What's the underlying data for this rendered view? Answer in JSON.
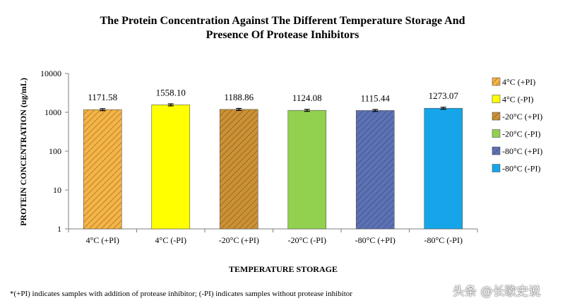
{
  "chart_data": {
    "type": "bar",
    "title_line1": "The Protein Concentration Against The Different Temperature Storage And",
    "title_line2": "Presence Of Protease Inhibitors",
    "ylabel": "PROTEIN CONCENTRATION (ug/mL)",
    "xlabel": "TEMPERATURE STORAGE",
    "yscale": "log",
    "ylim": [
      1,
      10000
    ],
    "yticks": [
      "1",
      "10",
      "100",
      "1000",
      "10000"
    ],
    "grid": false,
    "legend_position": "right",
    "categories": [
      "4°C (+PI)",
      "4°C (-PI)",
      "-20°C (+PI)",
      "-20°C (-PI)",
      "-80°C (+PI)",
      "-80°C (-PI)"
    ],
    "values": [
      1171.58,
      1558.1,
      1188.86,
      1124.08,
      1115.44,
      1273.07
    ],
    "value_labels": [
      "1171.58",
      "1558.10",
      "1188.86",
      "1124.08",
      "1115.44",
      "1273.07"
    ],
    "error_bars": true,
    "series_styles": [
      {
        "color": "#f5b445",
        "pattern": "hatch"
      },
      {
        "color": "#ffff00",
        "pattern": "solid"
      },
      {
        "color": "#cc9135",
        "pattern": "hatch"
      },
      {
        "color": "#92d050",
        "pattern": "solid"
      },
      {
        "color": "#5b72b8",
        "pattern": "hatch"
      },
      {
        "color": "#16a5e8",
        "pattern": "solid"
      }
    ],
    "legend": [
      "4°C (+PI)",
      "4°C (-PI)",
      "-20°C (+PI)",
      "-20°C (-PI)",
      "-80°C (+PI)",
      "-80°C (-PI)"
    ]
  },
  "footnote": "*(+PI) indicates samples with addition of protease inhibitor; (-PI) indicates samples without protease inhibitor",
  "watermark": "头条 @长歌史说"
}
